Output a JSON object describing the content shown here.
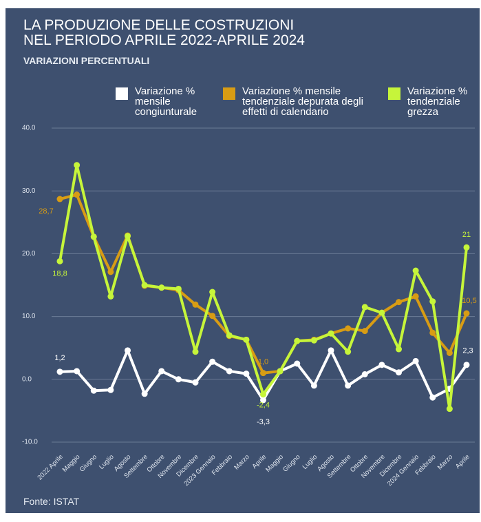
{
  "chart_data": {
    "type": "line",
    "title": [
      "LA PRODUZIONE DELLE COSTRUZIONI",
      "NEL PERIODO APRILE 2022-APRILE 2024"
    ],
    "subtitle": "VARIAZIONI PERCENTUALI",
    "source": "Fonte: ISTAT",
    "categories": [
      "2022 Aprile",
      "Maggio",
      "Giugno",
      "Luglio",
      "Agosto",
      "Settembre",
      "Ottobre",
      "Novembre",
      "Dicembre",
      "2023 Gennaio",
      "Febbraio",
      "Marzo",
      "Aprile",
      "Maggio",
      "Giugno",
      "Luglio",
      "Agosto",
      "Settembre",
      "Ottobre",
      "Novembre",
      "Dicembre",
      "2024 Gennaio",
      "Febbraio",
      "Marzo",
      "Aprile"
    ],
    "ylim": [
      -10,
      40
    ],
    "yticks": [
      {
        "value": -10,
        "label": "-10.0"
      },
      {
        "value": 0,
        "label": "0.0"
      },
      {
        "value": 10,
        "label": "10.0"
      },
      {
        "value": 20,
        "label": "20.0"
      },
      {
        "value": 30,
        "label": "30.0"
      },
      {
        "value": 40,
        "label": "40.0"
      }
    ],
    "grid": true,
    "series": [
      {
        "name": "Variazione % mensile congiunturale",
        "color": "#ffffff",
        "values": [
          1.2,
          1.3,
          -1.8,
          -1.7,
          4.6,
          -2.3,
          1.3,
          0.0,
          -0.5,
          2.8,
          1.3,
          0.9,
          -3.3,
          1.3,
          2.5,
          -1.0,
          4.6,
          -1.0,
          0.8,
          2.3,
          1.1,
          2.9,
          -2.9,
          -1.5,
          2.3
        ],
        "value_labels": [
          "1,2",
          null,
          null,
          null,
          null,
          null,
          null,
          null,
          null,
          null,
          null,
          null,
          "-3,3",
          null,
          null,
          null,
          null,
          null,
          null,
          null,
          null,
          null,
          null,
          null,
          "2,3"
        ]
      },
      {
        "name": "Variazione % mensile tendenziale depurata degli effetti di calendario",
        "color": "#d89c14",
        "values": [
          28.7,
          29.4,
          22.7,
          17.1,
          22.9,
          14.9,
          14.6,
          14.2,
          11.9,
          10.1,
          6.9,
          6.3,
          1.0,
          1.3,
          6.1,
          6.3,
          7.3,
          8.1,
          7.7,
          10.6,
          12.3,
          13.2,
          7.4,
          4.2,
          10.5
        ],
        "value_labels": [
          "28,7",
          null,
          null,
          null,
          null,
          null,
          null,
          null,
          null,
          null,
          null,
          null,
          "1,0",
          null,
          null,
          null,
          null,
          null,
          null,
          null,
          null,
          null,
          null,
          null,
          "10,5"
        ]
      },
      {
        "name": "Variazione % tendenziale grezza",
        "color": "#c6f53a",
        "values": [
          18.8,
          34.1,
          22.7,
          13.2,
          22.8,
          15.0,
          14.6,
          14.4,
          4.4,
          13.9,
          7.0,
          6.3,
          -2.4,
          1.3,
          6.1,
          6.2,
          7.3,
          4.4,
          11.5,
          10.6,
          4.8,
          17.3,
          12.4,
          -4.7,
          21.0
        ],
        "value_labels": [
          "18,8",
          null,
          null,
          null,
          null,
          null,
          null,
          null,
          null,
          null,
          null,
          null,
          "-2,4",
          null,
          null,
          null,
          null,
          null,
          null,
          null,
          null,
          null,
          null,
          null,
          "21"
        ]
      }
    ]
  }
}
